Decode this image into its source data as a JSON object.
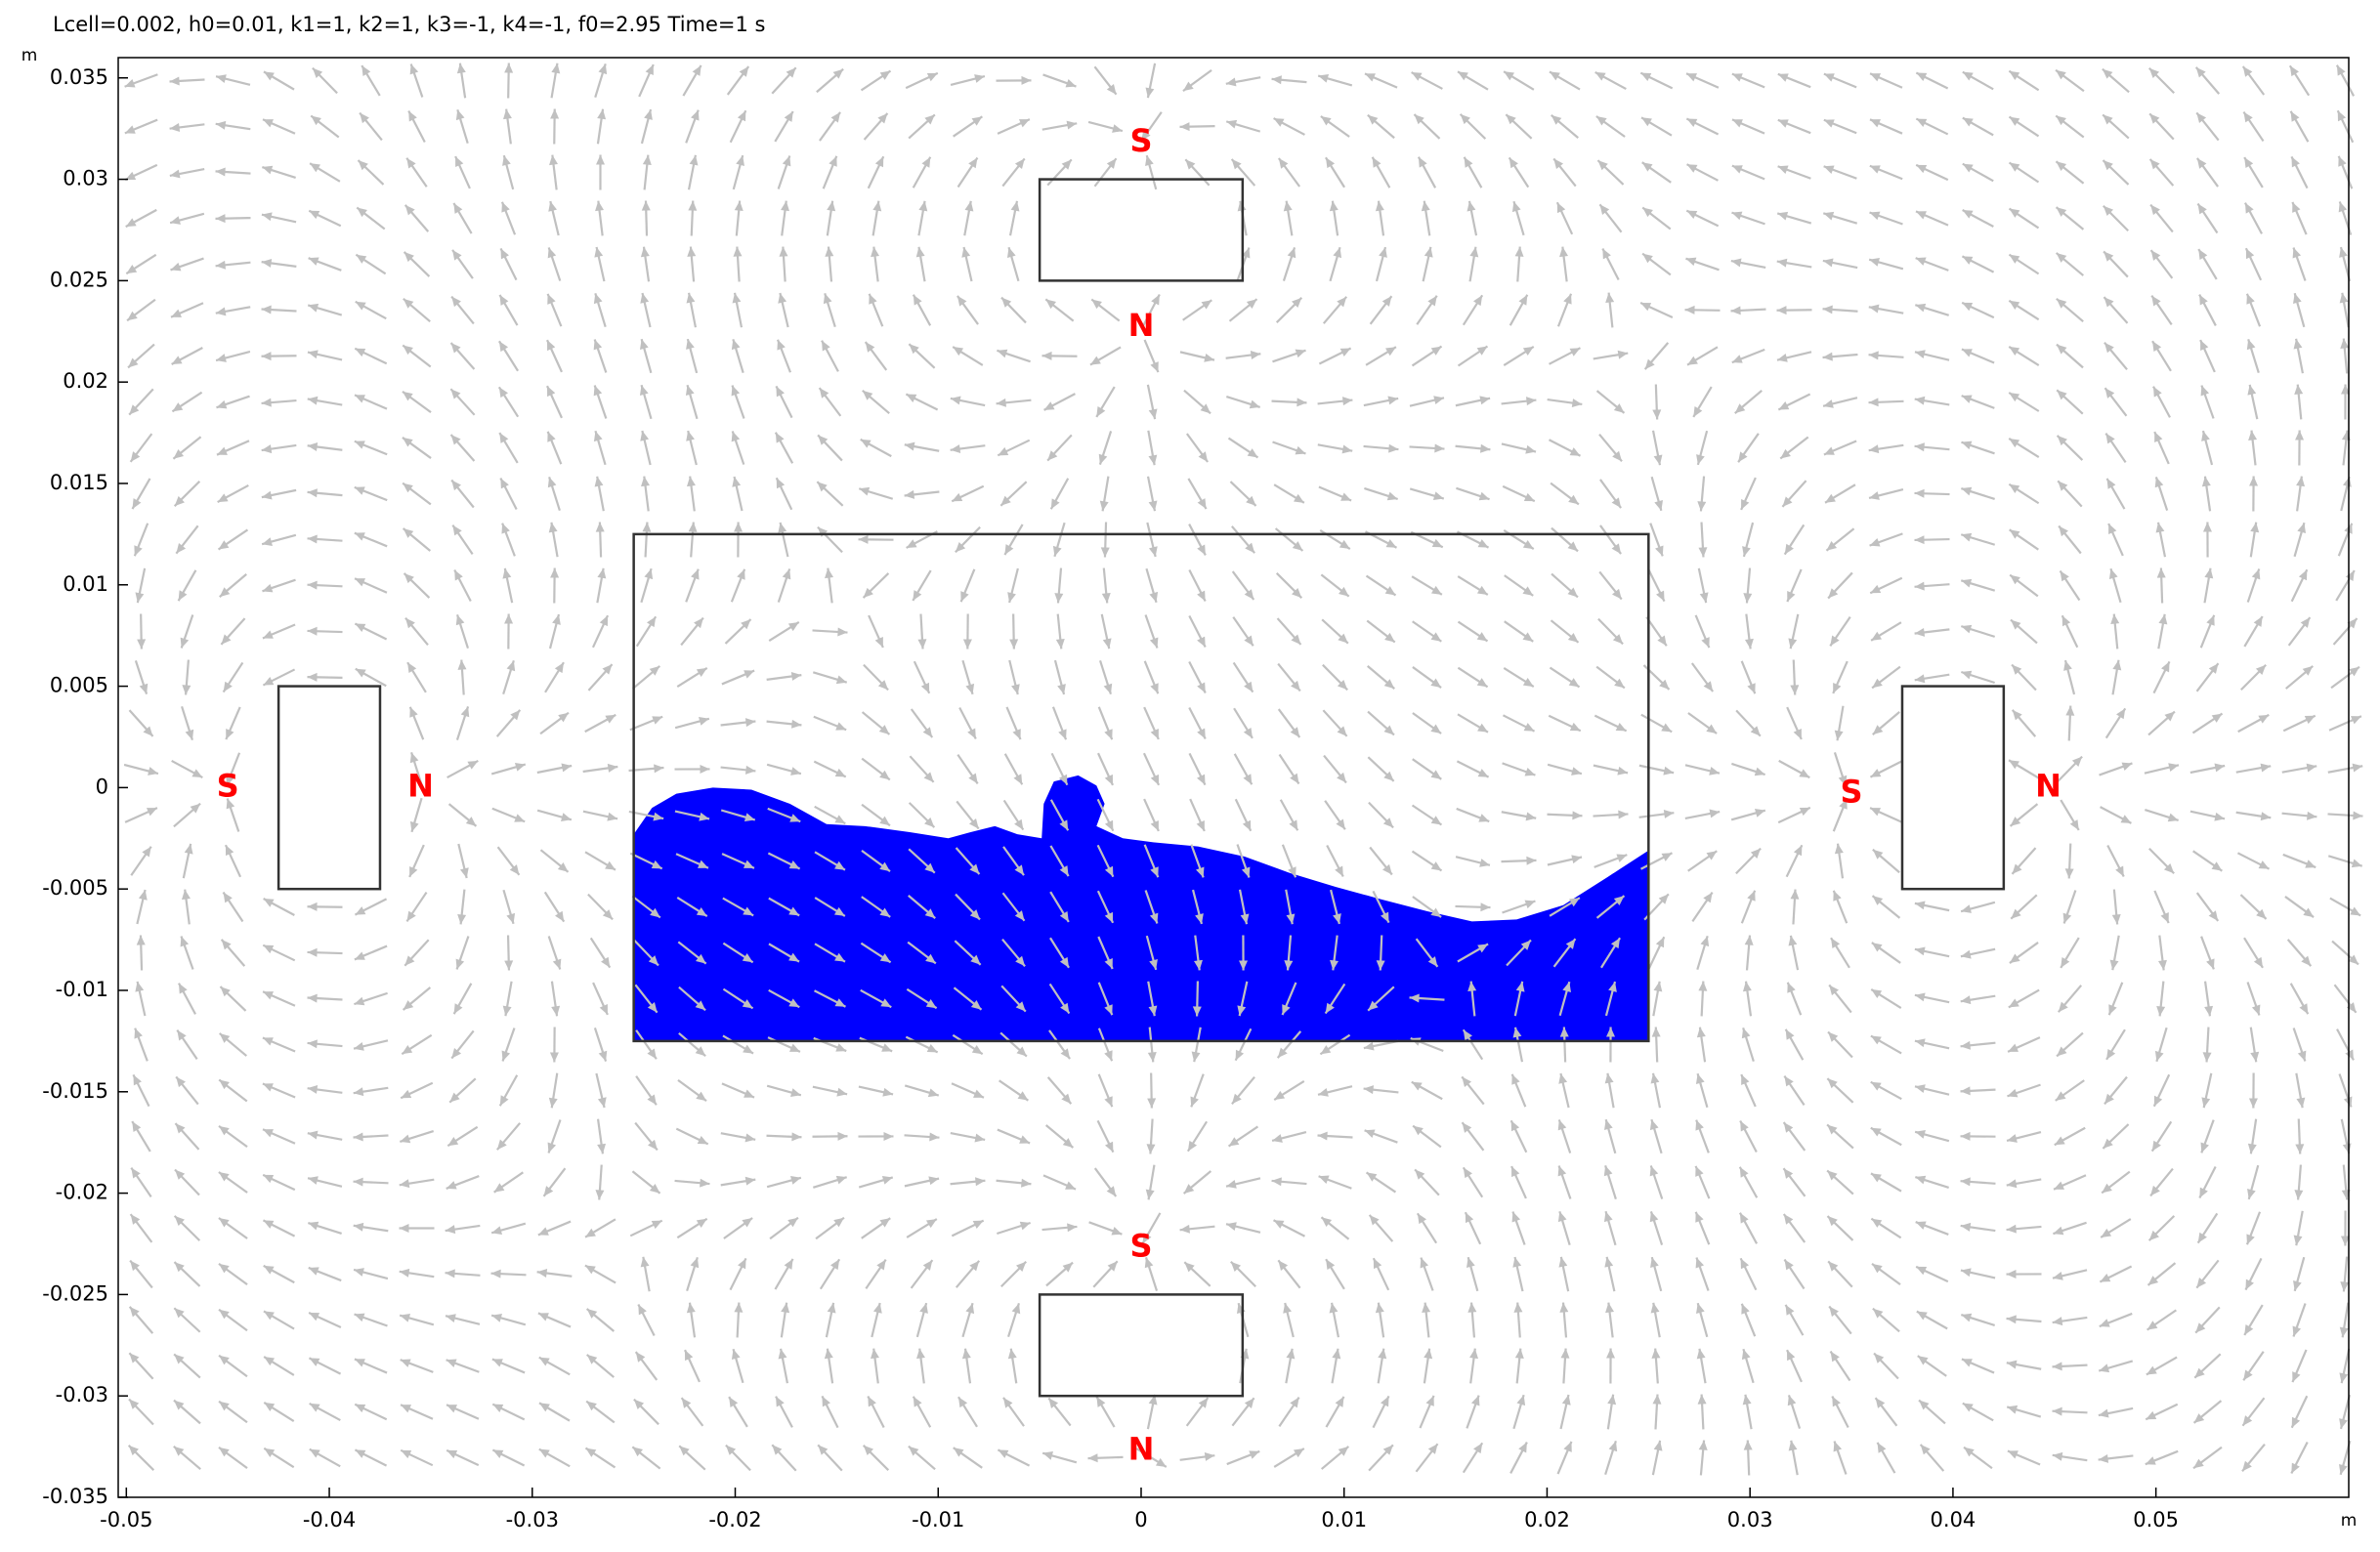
{
  "chart_data": {
    "type": "vector-field",
    "title": "Lcell=0.002, h0=0.01, k1=1, k2=1, k3=-1, k4=-1, f0=2.95 Time=1 s",
    "xlabel": "m",
    "ylabel": "m",
    "xlim": [
      -0.0504,
      0.0595
    ],
    "ylim": [
      -0.035,
      0.036
    ],
    "xticks": [
      -0.05,
      -0.04,
      -0.03,
      -0.02,
      -0.01,
      0,
      0.01,
      0.02,
      0.03,
      0.04,
      0.05
    ],
    "yticks": [
      -0.035,
      -0.03,
      -0.025,
      -0.02,
      -0.015,
      -0.01,
      -0.005,
      0,
      0.005,
      0.01,
      0.015,
      0.02,
      0.025,
      0.03,
      0.035
    ],
    "magnets": [
      {
        "rect": [
          -0.005,
          0.025,
          0.005,
          0.03
        ],
        "poles": [
          {
            "label": "S",
            "x": 0,
            "y": 0.0318
          },
          {
            "label": "N",
            "x": 0,
            "y": 0.0227
          }
        ]
      },
      {
        "rect": [
          -0.0425,
          -0.005,
          -0.0375,
          0.005
        ],
        "poles": [
          {
            "label": "S",
            "x": -0.045,
            "y": 0
          },
          {
            "label": "N",
            "x": -0.0355,
            "y": 0
          }
        ]
      },
      {
        "rect": [
          0.0375,
          -0.005,
          0.0425,
          0.005
        ],
        "poles": [
          {
            "label": "S",
            "x": 0.035,
            "y": -0.0003
          },
          {
            "label": "N",
            "x": 0.0447,
            "y": 0
          }
        ]
      },
      {
        "rect": [
          -0.005,
          -0.03,
          0.005,
          -0.025
        ],
        "poles": [
          {
            "label": "S",
            "x": 0,
            "y": -0.0227
          },
          {
            "label": "N",
            "x": 0,
            "y": -0.0327
          }
        ]
      }
    ],
    "container": {
      "rect": [
        -0.025,
        -0.0125,
        0.025,
        0.0125
      ]
    },
    "fluid": {
      "color": "#0000ff",
      "x": [
        -0.025,
        -0.0241,
        -0.0229,
        -0.0211,
        -0.0192,
        -0.0173,
        -0.0155,
        -0.0136,
        -0.0114,
        -0.0095,
        -0.0084,
        -0.0072,
        -0.0061,
        -0.0049,
        -0.0048,
        -0.0043,
        -0.0031,
        -0.0022,
        -0.0018,
        -0.0022,
        -0.0009,
        0.0006,
        0.0028,
        0.0051,
        0.0073,
        0.0096,
        0.0118,
        0.0141,
        0.0163,
        0.0185,
        0.0208,
        0.023,
        0.025,
        0.025,
        -0.025
      ],
      "y": [
        -0.0023,
        -0.001,
        -0.0003,
        0,
        -0.0001,
        -0.0008,
        -0.0018,
        -0.0019,
        -0.0022,
        -0.0025,
        -0.0022,
        -0.0019,
        -0.0023,
        -0.0025,
        -0.0008,
        0.0003,
        0.0006,
        0.0001,
        -0.0008,
        -0.0019,
        -0.0025,
        -0.0027,
        -0.0029,
        -0.0034,
        -0.0042,
        -0.0049,
        -0.0055,
        -0.0061,
        -0.0066,
        -0.0065,
        -0.0058,
        -0.0044,
        -0.0031,
        -0.0125,
        -0.0125
      ]
    },
    "arrow_color": "#c0c0c0",
    "pole_color": "#ff0000"
  }
}
